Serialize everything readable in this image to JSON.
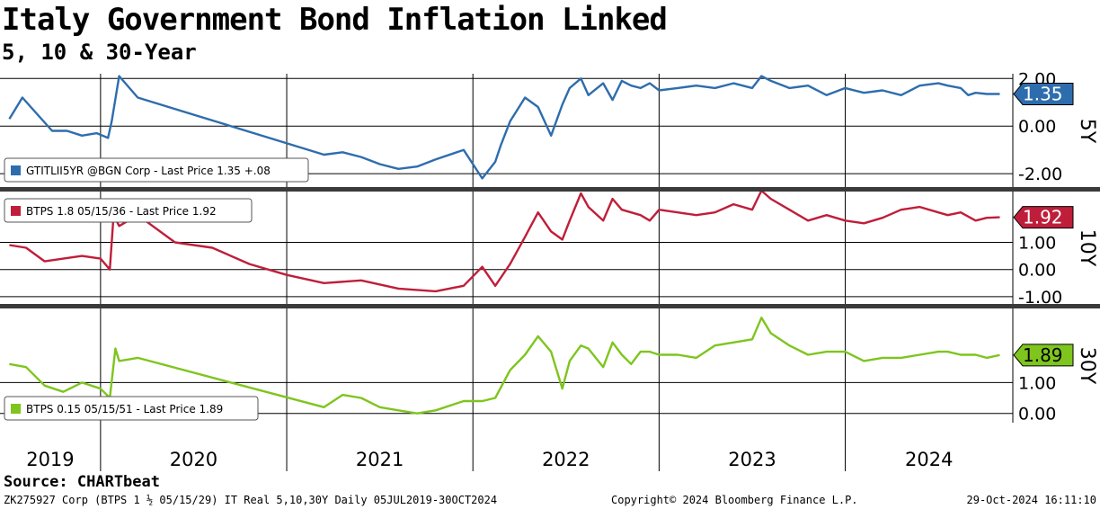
{
  "title": "Italy Government Bond Inflation Linked",
  "subtitle": "5, 10 & 30-Year",
  "source": "Source: CHARTbeat",
  "footer": {
    "left": "ZK275927 Corp (BTPS 1 ½ 05/15/29) IT Real 5,10,30Y  Daily 05JUL2019-30OCT2024",
    "center": "Copyright© 2024 Bloomberg Finance L.P.",
    "right": "29-Oct-2024 16:11:10"
  },
  "chart_data": [
    {
      "type": "line",
      "panel": "5Y",
      "tenor_label": "5Y",
      "legend": "GTITLII5YR @BGN Corp - Last Price 1.35  +.08",
      "last_price": "1.35",
      "color": "#2e6dad",
      "yticks": [
        "2.00",
        "0.00",
        "-2.00"
      ],
      "ylim": [
        -2.6,
        2.2
      ],
      "x": [
        2019.51,
        2019.58,
        2019.66,
        2019.74,
        2019.82,
        2019.9,
        2019.98,
        2020.04,
        2020.06,
        2020.1,
        2020.2,
        2021.2,
        2021.3,
        2021.4,
        2021.5,
        2021.6,
        2021.7,
        2021.8,
        2021.95,
        2022.05,
        2022.12,
        2022.15,
        2022.2,
        2022.28,
        2022.35,
        2022.42,
        2022.48,
        2022.52,
        2022.58,
        2022.62,
        2022.7,
        2022.75,
        2022.8,
        2022.85,
        2022.9,
        2022.95,
        2023.0,
        2023.1,
        2023.2,
        2023.3,
        2023.4,
        2023.5,
        2023.55,
        2023.6,
        2023.7,
        2023.8,
        2023.9,
        2024.0,
        2024.1,
        2024.2,
        2024.3,
        2024.4,
        2024.5,
        2024.55,
        2024.62,
        2024.66,
        2024.7,
        2024.76,
        2024.83
      ],
      "y": [
        0.3,
        1.2,
        0.5,
        -0.2,
        -0.2,
        -0.4,
        -0.3,
        -0.5,
        0.2,
        2.1,
        1.2,
        -1.2,
        -1.1,
        -1.3,
        -1.6,
        -1.8,
        -1.7,
        -1.4,
        -1.0,
        -2.2,
        -1.5,
        -0.8,
        0.2,
        1.2,
        0.8,
        -0.4,
        0.9,
        1.6,
        2.0,
        1.3,
        1.8,
        1.1,
        1.9,
        1.7,
        1.6,
        1.8,
        1.5,
        1.6,
        1.7,
        1.6,
        1.8,
        1.6,
        2.1,
        1.9,
        1.6,
        1.7,
        1.3,
        1.6,
        1.4,
        1.5,
        1.3,
        1.7,
        1.8,
        1.7,
        1.6,
        1.3,
        1.4,
        1.35,
        1.35
      ]
    },
    {
      "type": "line",
      "panel": "10Y",
      "tenor_label": "10Y",
      "legend": "BTPS 1.8 05/15/36 - Last Price 1.92",
      "last_price": "1.92",
      "color": "#bf1e3a",
      "yticks": [
        "1.00",
        "0.00",
        "-1.00"
      ],
      "ylim": [
        -1.3,
        2.9
      ],
      "x": [
        2019.51,
        2019.6,
        2019.7,
        2019.8,
        2019.9,
        2020.0,
        2020.05,
        2020.07,
        2020.1,
        2020.2,
        2020.4,
        2020.6,
        2020.8,
        2021.0,
        2021.2,
        2021.4,
        2021.6,
        2021.8,
        2021.95,
        2022.05,
        2022.12,
        2022.2,
        2022.28,
        2022.35,
        2022.42,
        2022.48,
        2022.52,
        2022.58,
        2022.62,
        2022.7,
        2022.75,
        2022.8,
        2022.85,
        2022.9,
        2022.95,
        2023.0,
        2023.1,
        2023.2,
        2023.3,
        2023.4,
        2023.5,
        2023.55,
        2023.6,
        2023.7,
        2023.8,
        2023.9,
        2024.0,
        2024.1,
        2024.2,
        2024.3,
        2024.4,
        2024.5,
        2024.55,
        2024.62,
        2024.7,
        2024.76,
        2024.83
      ],
      "y": [
        0.9,
        0.8,
        0.3,
        0.4,
        0.5,
        0.4,
        0.0,
        2.0,
        1.6,
        2.0,
        1.0,
        0.8,
        0.2,
        -0.2,
        -0.5,
        -0.4,
        -0.7,
        -0.8,
        -0.6,
        0.1,
        -0.6,
        0.2,
        1.2,
        2.1,
        1.4,
        1.1,
        1.8,
        2.8,
        2.3,
        1.8,
        2.6,
        2.2,
        2.1,
        2.0,
        1.8,
        2.2,
        2.1,
        2.0,
        2.1,
        2.4,
        2.2,
        2.9,
        2.6,
        2.2,
        1.8,
        2.0,
        1.8,
        1.7,
        1.9,
        2.2,
        2.3,
        2.1,
        2.0,
        2.1,
        1.8,
        1.9,
        1.92
      ]
    },
    {
      "type": "line",
      "panel": "30Y",
      "tenor_label": "30Y",
      "legend": "BTPS 0.15 05/15/51 - Last Price 1.89",
      "last_price": "1.89",
      "color": "#7ec51e",
      "yticks": [
        "1.00",
        "0.00"
      ],
      "ylim": [
        -0.3,
        3.4
      ],
      "x": [
        2019.51,
        2019.6,
        2019.7,
        2019.8,
        2019.9,
        2020.0,
        2020.05,
        2020.08,
        2020.1,
        2020.2,
        2021.2,
        2021.3,
        2021.4,
        2021.5,
        2021.6,
        2021.7,
        2021.8,
        2021.95,
        2022.05,
        2022.12,
        2022.2,
        2022.28,
        2022.35,
        2022.42,
        2022.48,
        2022.52,
        2022.58,
        2022.62,
        2022.7,
        2022.75,
        2022.8,
        2022.85,
        2022.9,
        2022.95,
        2023.0,
        2023.1,
        2023.2,
        2023.3,
        2023.4,
        2023.5,
        2023.55,
        2023.6,
        2023.7,
        2023.8,
        2023.9,
        2024.0,
        2024.1,
        2024.2,
        2024.3,
        2024.4,
        2024.5,
        2024.55,
        2024.62,
        2024.7,
        2024.76,
        2024.83
      ],
      "y": [
        1.6,
        1.5,
        0.9,
        0.7,
        1.0,
        0.8,
        0.5,
        2.1,
        1.7,
        1.8,
        0.2,
        0.6,
        0.5,
        0.2,
        0.1,
        0.0,
        0.1,
        0.4,
        0.4,
        0.5,
        1.4,
        1.9,
        2.5,
        2.0,
        0.8,
        1.7,
        2.2,
        2.1,
        1.5,
        2.3,
        1.9,
        1.6,
        2.0,
        2.0,
        1.9,
        1.9,
        1.8,
        2.2,
        2.3,
        2.4,
        3.1,
        2.6,
        2.2,
        1.9,
        2.0,
        2.0,
        1.7,
        1.8,
        1.8,
        1.9,
        2.0,
        2.0,
        1.9,
        1.9,
        1.8,
        1.89
      ]
    }
  ],
  "x_axis": {
    "years": [
      "2019",
      "2020",
      "2021",
      "2022",
      "2023",
      "2024"
    ]
  }
}
